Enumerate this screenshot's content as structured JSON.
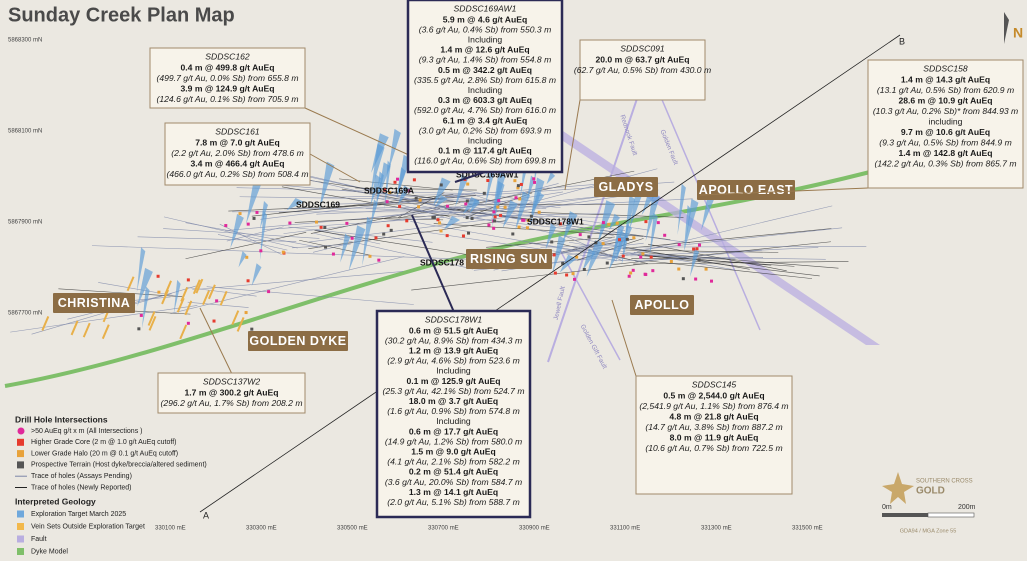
{
  "header": {
    "title": "Sunday Creek Plan Map",
    "north": "N"
  },
  "northings": [
    "5868300 mN",
    "5868100 mN",
    "5867900 mN",
    "5867700 mN"
  ],
  "eastings": [
    "330100 mE",
    "330300 mE",
    "330500 mE",
    "330700 mE",
    "330900 mE",
    "331100 mE",
    "331300 mE",
    "331500 mE"
  ],
  "section": [
    "A",
    "B"
  ],
  "areas": [
    "CHRISTINA",
    "GOLDEN DYKE",
    "RISING SUN",
    "GLADYS",
    "APOLLO EAST",
    "APOLLO"
  ],
  "holes": [
    "SDDSC169",
    "SDDSC169A",
    "SDDSC169AW1",
    "SDDSC178W1",
    "SDDSC178"
  ],
  "faults": [
    "Rednook Fault",
    "Golden Fault",
    "Golden Gift Fault",
    "Jewell Fault"
  ],
  "callouts": [
    {
      "title": "SDDSC162",
      "lines": [
        "0.4 m @ 499.8 g/t AuEq",
        "(499.7 g/t Au, 0.0% Sb) from 655.8 m",
        "3.9 m @ 124.9 g/t AuEq",
        "(124.6 g/t Au, 0.1% Sb) from 705.9 m"
      ]
    },
    {
      "title": "SDDSC161",
      "lines": [
        "7.8 m @ 7.0 g/t AuEq",
        "(2.2 g/t Au, 2.0% Sb) from 478.6 m",
        "3.4 m @ 466.4 g/t AuEq",
        "(466.0 g/t Au, 0.2% Sb) from 508.4 m"
      ]
    },
    {
      "title": "SDDSC169AW1",
      "lines": [
        "5.9 m @ 4.6 g/t AuEq",
        "(3.6 g/t Au, 0.4% Sb) from 550.3 m",
        "Including",
        "1.4 m @ 12.6 g/t AuEq",
        "(9.3 g/t Au, 1.4% Sb) from 554.8 m",
        "0.5 m @ 342.2 g/t AuEq",
        "(335.5 g/t Au, 2.8% Sb) from 615.8 m",
        "Including",
        "0.3 m @ 603.3 g/t AuEq",
        "(592.0 g/t Au, 4.7% Sb) from 616.0 m",
        "6.1 m @ 3.4 g/t AuEq",
        "(3.0 g/t Au, 0.2% Sb) from 693.9 m",
        "Including",
        "0.1 m @ 117.4 g/t AuEq",
        "(116.0 g/t Au, 0.6% Sb) from 699.8 m"
      ]
    },
    {
      "title": "SDDSC091",
      "lines": [
        "20.0 m @ 63.7 g/t AuEq",
        "(62.7 g/t Au, 0.5% Sb) from 430.0 m"
      ]
    },
    {
      "title": "SDDSC158",
      "lines": [
        "1.4 m @ 14.3 g/t AuEq",
        "(13.1 g/t Au, 0.5% Sb) from 620.9 m",
        "28.6 m @ 10.9 g/t AuEq",
        "(10.3 g/t Au, 0.2% Sb)* from 844.93 m",
        "including",
        "9.7 m @ 10.6 g/t AuEq",
        "(9.3 g/t Au, 0.5% Sb) from 844.9 m",
        "1.4 m @ 142.8 g/t AuEq",
        "(142.2 g/t Au, 0.3% Sb) from 865.7 m"
      ]
    },
    {
      "title": "SDDSC137W2",
      "lines": [
        "1.7 m @ 300.2 g/t AuEq",
        "(296.2 g/t Au, 1.7% Sb) from 208.2 m"
      ]
    },
    {
      "title": "SDDSC178W1",
      "lines": [
        "0.6 m @ 51.5 g/t AuEq",
        "(30.2 g/t Au, 8.9% Sb) from 434.3 m",
        "1.2 m @ 13.9 g/t AuEq",
        "(2.9 g/t Au, 4.6% Sb) from 523.6 m",
        "Including",
        "0.1 m @ 125.9 g/t AuEq",
        "(25.3 g/t Au, 42.1% Sb) from 524.7 m",
        "18.0 m @ 3.7 g/t AuEq",
        "(1.6 g/t Au, 0.9% Sb) from 574.8 m",
        "Including",
        "0.6 m @ 17.7 g/t AuEq",
        "(14.9 g/t Au, 1.2% Sb) from 580.0 m",
        "1.5 m @ 9.0 g/t AuEq",
        "(4.1 g/t Au, 2.1% Sb) from 582.2 m",
        "0.2 m @ 51.4 g/t AuEq",
        "(3.6 g/t Au, 20.0% Sb) from 584.7 m",
        "1.3 m @ 14.1 g/t AuEq",
        "(2.0 g/t Au, 5.1% Sb) from 588.7 m"
      ]
    },
    {
      "title": "SDDSC145",
      "lines": [
        "0.5 m @ 2,544.0 g/t AuEq",
        "(2,541.9 g/t Au, 1.1% Sb) from 876.4 m",
        "4.8 m @ 21.8 g/t AuEq",
        "(14.7 g/t Au, 3.8% Sb) from 887.2 m",
        "8.0 m @ 11.9 g/t AuEq",
        "(10.6 g/t Au, 0.7% Sb) from 722.5 m"
      ]
    }
  ],
  "legend": {
    "drill_title": "Drill Hole Intersections",
    "drill_items": [
      ">50 AuEq g/t x m (All Intersections )",
      "Higher Grade Core (2 m @ 1.0 g/t AuEq cutoff)",
      "Lower Grade Halo (20 m @ 0.1 g/t AuEq cutoff)",
      "Prospective Terrain (Host dyke/breccia/altered sediment)",
      "Trace of holes (Assays Pending)",
      "Trace of holes (Newly Reported)"
    ],
    "geology_title": "Interpreted Geology",
    "geology_items": [
      "Exploration Target March 2025",
      "Vein Sets Outside Exploration Target",
      "Fault",
      "Dyke Model"
    ]
  },
  "scale": {
    "start": "0m",
    "end": "200m",
    "projection": "GDA94 / MGA Zone 55"
  },
  "logo": {
    "line1": "SOUTHERN CROSS",
    "line2": "GOLD"
  }
}
